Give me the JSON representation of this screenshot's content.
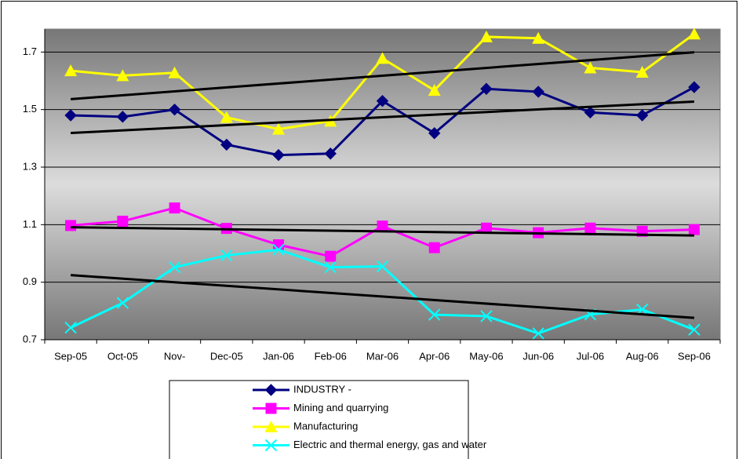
{
  "chart_data": {
    "type": "line",
    "categories": [
      "Sep-05",
      "Oct-05",
      "Nov-",
      "Dec-05",
      "Jan-06",
      "Feb-06",
      "Mar-06",
      "Apr-06",
      "May-06",
      "Jun-06",
      "Jul-06",
      "Aug-06",
      "Sep-06"
    ],
    "series": [
      {
        "name": "INDUSTRY -",
        "color": "#000080",
        "marker": "diamond",
        "values": [
          1.48,
          1.475,
          1.5,
          1.378,
          1.342,
          1.347,
          1.53,
          1.418,
          1.572,
          1.562,
          1.49,
          1.48,
          1.578
        ]
      },
      {
        "name": "Mining and quarrying",
        "color": "#ff00ff",
        "marker": "square",
        "values": [
          1.097,
          1.112,
          1.158,
          1.087,
          1.03,
          0.99,
          1.095,
          1.02,
          1.088,
          1.072,
          1.088,
          1.077,
          1.083
        ]
      },
      {
        "name": "Manufacturing",
        "color": "#ffff00",
        "marker": "triangle",
        "values": [
          1.635,
          1.618,
          1.628,
          1.473,
          1.432,
          1.46,
          1.678,
          1.567,
          1.753,
          1.748,
          1.645,
          1.63,
          1.763
        ]
      },
      {
        "name": "Electric and thermal energy, gas and water",
        "color": "#00ffff",
        "marker": "x",
        "values": [
          0.742,
          0.828,
          0.952,
          0.993,
          1.013,
          0.952,
          0.955,
          0.787,
          0.782,
          0.722,
          0.788,
          0.805,
          0.735
        ]
      }
    ],
    "trendline": true,
    "ylim": [
      0.7,
      1.78
    ],
    "yticks": [
      0.7,
      0.9,
      1.1,
      1.3,
      1.5,
      1.7
    ],
    "grid": true,
    "legend": "bottom"
  }
}
